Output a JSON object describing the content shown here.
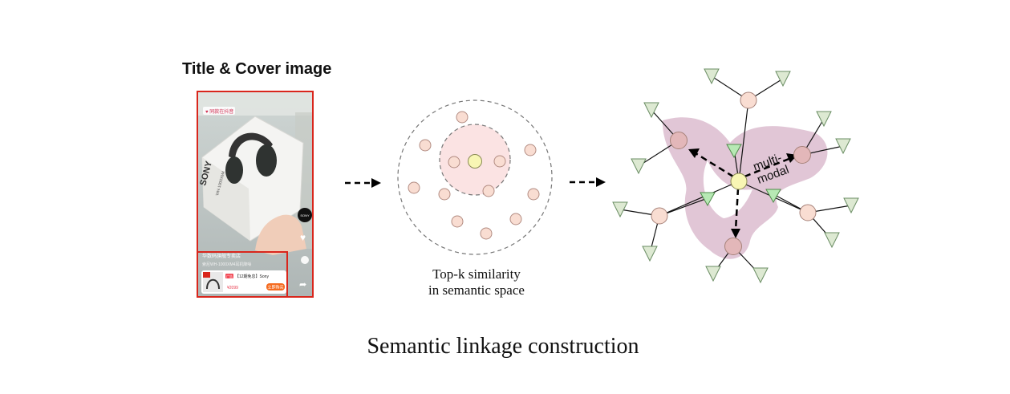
{
  "panel1": {
    "heading": "Title & Cover image",
    "screenshot": {
      "badge_text": "♥ 同款在抖音",
      "brand_text": "SONY",
      "model_text": "WH-1000XM4",
      "overlay_title": "华数码旗舰专卖店",
      "overlay_subtitle": "索尼WH-1000XM4耳机降噪",
      "product_tag": "广告",
      "product_title": "【12期免息】Sony",
      "price": "¥2099",
      "buy_label": "立即购买",
      "side_logo": "SONY"
    }
  },
  "panel2": {
    "caption_line1": "Top-k similarity",
    "caption_line2": "in semantic space"
  },
  "panel3": {
    "edge_label_line1": "multi-",
    "edge_label_line2": "modal"
  },
  "footer": {
    "title": "Semantic linkage construction"
  },
  "colors": {
    "background": "#ffffff",
    "red_frame": "#d9261c",
    "node_peach": "#f9ddd2",
    "node_stroke": "#b28c82",
    "node_center": "#f8f6b4",
    "node_neighbor": "#e3b7b9",
    "triangle_pale": "#dde9d2",
    "triangle_green": "#b7e9b4",
    "blob_purple": "#dcbccf",
    "focus_circle": "#fbe3e3"
  }
}
